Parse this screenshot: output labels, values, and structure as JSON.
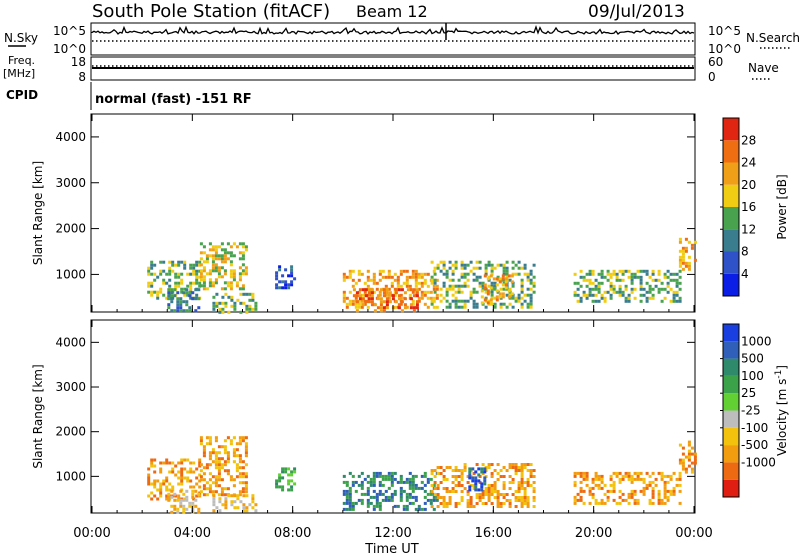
{
  "header": {
    "station": "South Pole Station (fitACF)",
    "beam": "Beam 12",
    "date": "09/Jul/2013"
  },
  "nsky_panel": {
    "left_label": "N.Sky",
    "right_label": "N.Search",
    "left_ticks": [
      "10^5",
      "10^0"
    ],
    "right_ticks": [
      "10^5",
      "10^0"
    ]
  },
  "freq_panel": {
    "left_label_line1": "Freq.",
    "left_label_line2": "[MHz]",
    "right_label": "Nave",
    "left_ticks": [
      "18",
      "8"
    ],
    "right_ticks": [
      "60",
      "0"
    ]
  },
  "cpid": {
    "label": "CPID",
    "value": "normal (fast) -151 RF"
  },
  "chart_data": [
    {
      "type": "heatmap",
      "title": "",
      "ylabel": "Slant Range [km]",
      "ylim": [
        180,
        4500
      ],
      "y_ticks": [
        1000,
        2000,
        3000,
        4000
      ],
      "xlim_hours": [
        0,
        24
      ],
      "colorbar": {
        "label": "Power [dB]",
        "ticks": [
          "4",
          "8",
          "12",
          "16",
          "20",
          "24",
          "28"
        ],
        "colors": [
          "#0a1ee6",
          "#2f52c8",
          "#3a7d8f",
          "#48a24e",
          "#f0cc12",
          "#f0a018",
          "#ef6e12",
          "#e02612"
        ]
      },
      "echo_regions": [
        {
          "t0": 2.2,
          "t1": 4.3,
          "r0": 500,
          "r1": 1300,
          "level": 3
        },
        {
          "t0": 3.0,
          "t1": 4.3,
          "r0": 180,
          "r1": 700,
          "level": 2
        },
        {
          "t0": 4.3,
          "t1": 6.1,
          "r0": 700,
          "r1": 1700,
          "level": 4
        },
        {
          "t0": 4.8,
          "t1": 6.5,
          "r0": 180,
          "r1": 600,
          "level": 3
        },
        {
          "t0": 7.3,
          "t1": 8.1,
          "r0": 700,
          "r1": 1200,
          "level": 1
        },
        {
          "t0": 10.0,
          "t1": 13.8,
          "r0": 250,
          "r1": 1100,
          "level": 5
        },
        {
          "t0": 10.4,
          "t1": 13.0,
          "r0": 200,
          "r1": 700,
          "level": 6
        },
        {
          "t0": 13.5,
          "t1": 17.6,
          "r0": 300,
          "r1": 1300,
          "level": 3
        },
        {
          "t0": 15.5,
          "t1": 16.7,
          "r0": 400,
          "r1": 1000,
          "level": 5
        },
        {
          "t0": 19.2,
          "t1": 23.4,
          "r0": 400,
          "r1": 1100,
          "level": 3
        },
        {
          "t0": 23.4,
          "t1": 24.0,
          "r0": 1100,
          "r1": 1800,
          "level": 5
        }
      ]
    },
    {
      "type": "heatmap",
      "title": "",
      "ylabel": "Slant Range [km]",
      "ylim": [
        180,
        4500
      ],
      "y_ticks": [
        1000,
        2000,
        3000,
        4000
      ],
      "xlim_hours": [
        0,
        24
      ],
      "x_ticks": [
        "00:00",
        "04:00",
        "08:00",
        "12:00",
        "16:00",
        "20:00",
        "00:00"
      ],
      "xlabel": "Time UT",
      "colorbar": {
        "label": "Velocity [m s-1]",
        "label_main": "Velocity [m s",
        "label_sup": "-1",
        "label_end": "]",
        "ticks": [
          "1000",
          "500",
          "100",
          "25",
          "-25",
          "-100",
          "-500",
          "-1000"
        ],
        "colors": [
          "#1a3fe0",
          "#2f5fb8",
          "#2e8a6a",
          "#3ca24a",
          "#62d032",
          "#bdbdbd",
          "#f2c20c",
          "#f29c10",
          "#ee6a12",
          "#e01e12"
        ]
      },
      "echo_regions": [
        {
          "t0": 2.2,
          "t1": 4.3,
          "r0": 500,
          "r1": 1400,
          "level": 7
        },
        {
          "t0": 3.0,
          "t1": 4.3,
          "r0": 200,
          "r1": 700,
          "level": 6
        },
        {
          "t0": 4.3,
          "t1": 6.2,
          "r0": 600,
          "r1": 1900,
          "level": 7
        },
        {
          "t0": 4.8,
          "t1": 6.5,
          "r0": 200,
          "r1": 600,
          "level": 6
        },
        {
          "t0": 7.3,
          "t1": 8.1,
          "r0": 700,
          "r1": 1200,
          "level": 3
        },
        {
          "t0": 10.0,
          "t1": 13.8,
          "r0": 250,
          "r1": 1100,
          "level": 2
        },
        {
          "t0": 13.5,
          "t1": 17.6,
          "r0": 300,
          "r1": 1300,
          "level": 7
        },
        {
          "t0": 15.0,
          "t1": 15.6,
          "r0": 700,
          "r1": 1200,
          "level": 1
        },
        {
          "t0": 19.2,
          "t1": 23.4,
          "r0": 400,
          "r1": 1100,
          "level": 7
        },
        {
          "t0": 23.4,
          "t1": 24.0,
          "r0": 1100,
          "r1": 1800,
          "level": 7
        }
      ]
    }
  ]
}
